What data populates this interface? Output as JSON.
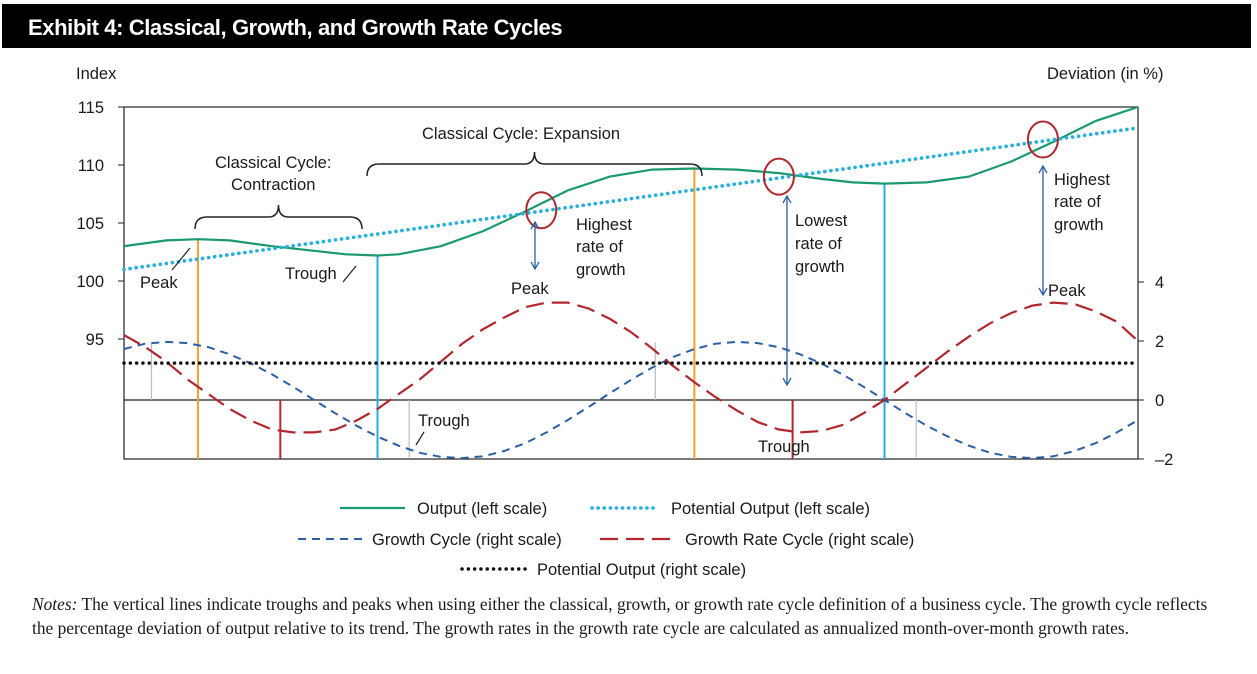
{
  "title": "Exhibit 4: Classical, Growth, and Growth Rate Cycles",
  "chart_data": {
    "type": "line",
    "left_axis": {
      "label": "Index",
      "ticks": [
        95,
        100,
        105,
        110,
        115
      ],
      "tick_labels": [
        "95",
        "100",
        "105",
        "110",
        "115"
      ]
    },
    "right_axis": {
      "label": "Deviation (in %)",
      "ticks": [
        -2,
        0,
        2,
        4
      ],
      "tick_labels": [
        "–2",
        "0",
        "2",
        "4"
      ]
    },
    "series": [
      {
        "name": "Output (left scale)",
        "color": "#1a9a6c",
        "style": "solid",
        "points": [
          [
            0,
            103
          ],
          [
            4,
            103.5
          ],
          [
            7,
            103.6
          ],
          [
            10,
            103.5
          ],
          [
            14,
            103
          ],
          [
            18,
            102.6
          ],
          [
            21,
            102.3
          ],
          [
            24,
            102.2
          ],
          [
            26,
            102.3
          ],
          [
            30,
            103
          ],
          [
            34,
            104.3
          ],
          [
            38,
            106
          ],
          [
            42,
            107.8
          ],
          [
            46,
            109
          ],
          [
            50,
            109.6
          ],
          [
            54,
            109.7
          ],
          [
            58,
            109.6
          ],
          [
            62,
            109.3
          ],
          [
            66,
            108.8
          ],
          [
            69,
            108.5
          ],
          [
            72,
            108.4
          ],
          [
            76,
            108.5
          ],
          [
            80,
            109
          ],
          [
            84,
            110.3
          ],
          [
            88,
            112
          ],
          [
            92,
            113.8
          ],
          [
            96,
            115
          ]
        ]
      },
      {
        "name": "Potential Output (left scale)",
        "color": "#27b0dc",
        "style": "dotted",
        "points": [
          [
            0,
            101
          ],
          [
            96,
            113.2
          ]
        ]
      },
      {
        "name": "Growth Cycle (right scale)",
        "color": "#2b5fa5",
        "style": "dashed",
        "points": [
          [
            0,
            1.73
          ],
          [
            2,
            1.91
          ],
          [
            4,
            1.97
          ],
          [
            6,
            1.93
          ],
          [
            8,
            1.79
          ],
          [
            10,
            1.55
          ],
          [
            12,
            1.24
          ],
          [
            14,
            0.87
          ],
          [
            16,
            0.45
          ],
          [
            18,
            0.0
          ],
          [
            20,
            -0.45
          ],
          [
            22,
            -0.87
          ],
          [
            24,
            -1.24
          ],
          [
            26,
            -1.55
          ],
          [
            28,
            -1.79
          ],
          [
            30,
            -1.93
          ],
          [
            32,
            -1.97
          ],
          [
            34,
            -1.91
          ],
          [
            36,
            -1.73
          ],
          [
            38,
            -1.46
          ],
          [
            40,
            -1.1
          ],
          [
            42,
            -0.68
          ],
          [
            44,
            -0.23
          ],
          [
            46,
            0.23
          ],
          [
            48,
            0.68
          ],
          [
            50,
            1.1
          ],
          [
            52,
            1.46
          ],
          [
            54,
            1.73
          ],
          [
            56,
            1.91
          ],
          [
            58,
            1.97
          ],
          [
            60,
            1.93
          ],
          [
            62,
            1.79
          ],
          [
            64,
            1.55
          ],
          [
            66,
            1.24
          ],
          [
            68,
            0.87
          ],
          [
            70,
            0.45
          ],
          [
            72,
            0.0
          ],
          [
            74,
            -0.45
          ],
          [
            76,
            -0.87
          ],
          [
            78,
            -1.24
          ],
          [
            80,
            -1.55
          ],
          [
            82,
            -1.79
          ],
          [
            84,
            -1.93
          ],
          [
            86,
            -1.97
          ],
          [
            88,
            -1.91
          ],
          [
            90,
            -1.73
          ],
          [
            92,
            -1.46
          ],
          [
            94,
            -1.1
          ],
          [
            96,
            -0.68
          ]
        ]
      },
      {
        "name": "Growth Rate Cycle (right scale)",
        "color": "#b0282e",
        "style": "longdash",
        "points": [
          [
            0,
            2.2
          ],
          [
            2,
            1.8
          ],
          [
            4,
            1.3
          ],
          [
            6,
            0.7
          ],
          [
            8,
            0.2
          ],
          [
            10,
            -0.3
          ],
          [
            12,
            -0.7
          ],
          [
            14,
            -1.0
          ],
          [
            16,
            -1.1
          ],
          [
            18,
            -1.1
          ],
          [
            20,
            -1.0
          ],
          [
            22,
            -0.7
          ],
          [
            24,
            -0.3
          ],
          [
            26,
            0.2
          ],
          [
            28,
            0.7
          ],
          [
            30,
            1.3
          ],
          [
            32,
            1.9
          ],
          [
            34,
            2.4
          ],
          [
            36,
            2.8
          ],
          [
            38,
            3.15
          ],
          [
            40,
            3.3
          ],
          [
            42,
            3.3
          ],
          [
            44,
            3.1
          ],
          [
            46,
            2.75
          ],
          [
            48,
            2.3
          ],
          [
            50,
            1.75
          ],
          [
            52,
            1.15
          ],
          [
            54,
            0.6
          ],
          [
            56,
            0.1
          ],
          [
            58,
            -0.35
          ],
          [
            60,
            -0.75
          ],
          [
            62,
            -1.0
          ],
          [
            64,
            -1.1
          ],
          [
            66,
            -1.05
          ],
          [
            68,
            -0.85
          ],
          [
            70,
            -0.45
          ],
          [
            72,
            0.0
          ],
          [
            74,
            0.55
          ],
          [
            76,
            1.1
          ],
          [
            78,
            1.65
          ],
          [
            80,
            2.15
          ],
          [
            82,
            2.6
          ],
          [
            84,
            2.95
          ],
          [
            86,
            3.2
          ],
          [
            88,
            3.3
          ],
          [
            90,
            3.25
          ],
          [
            92,
            3.0
          ],
          [
            94,
            2.65
          ],
          [
            96,
            2.0
          ]
        ]
      },
      {
        "name": "Potential Output (right scale)",
        "color": "#111111",
        "style": "dotted-thick",
        "points": [
          [
            0,
            1.25
          ],
          [
            96,
            1.25
          ]
        ]
      }
    ],
    "annotations": [
      "Classical Cycle:",
      "Contraction",
      "Classical Cycle: Expansion",
      "Peak",
      "Trough",
      "Highest",
      "rate of",
      "growth",
      "Lowest",
      "rate of",
      "growth",
      "Peak",
      "Trough",
      "Highest",
      "rate of",
      "growth",
      "Peak",
      "Trough"
    ],
    "legend": [
      "Output (left scale)",
      "Potential Output (left scale)",
      "Growth Cycle (right scale)",
      "Growth Rate Cycle (right scale)",
      "Potential Output (right scale)"
    ],
    "legend_position": "bottom",
    "grid": false
  },
  "notes": {
    "label": "Notes:",
    "text": "The vertical lines indicate troughs and peaks when using either the classical, growth, or growth rate cycle definition of a business cycle. The growth cycle reflects the percentage deviation of output relative to its trend. The growth rates in the growth rate cycle are calculated as annualized month-over-month growth rates."
  }
}
